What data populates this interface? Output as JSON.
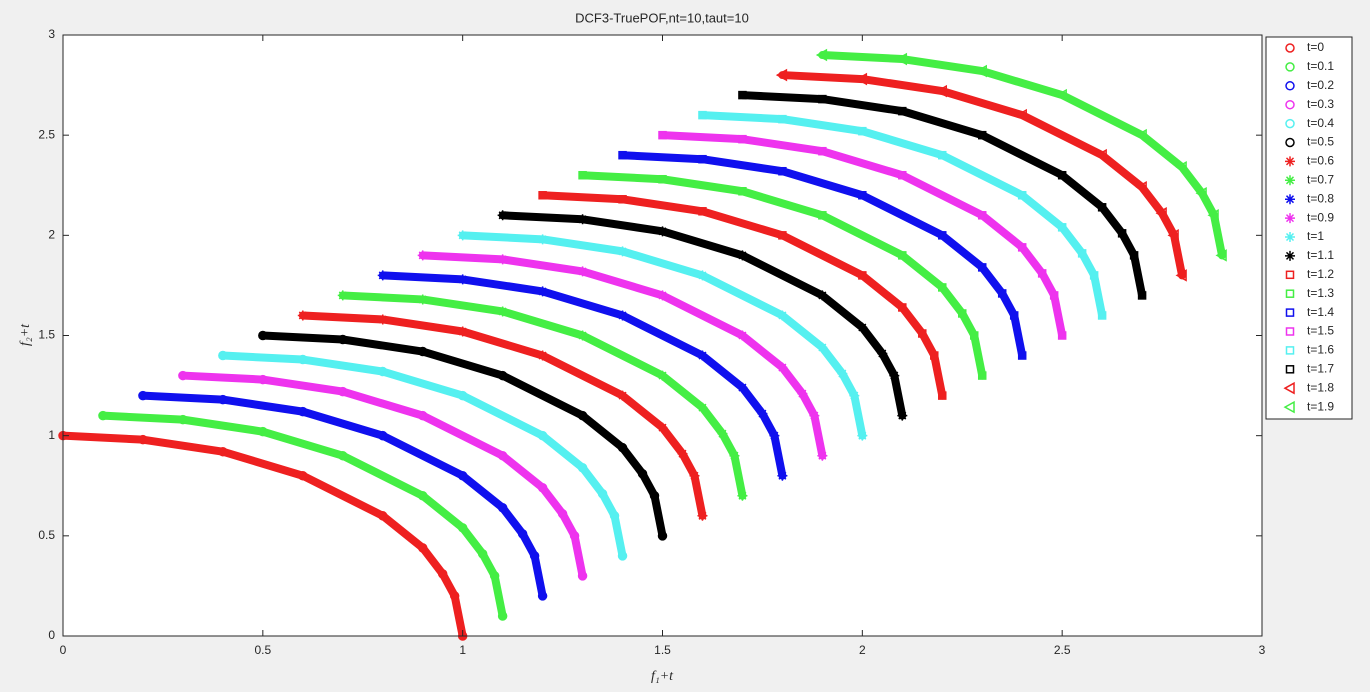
{
  "chart_data": {
    "type": "line",
    "title": "DCF3-TruePOF,nt=10,taut=10",
    "xlabel": "f₁+t",
    "ylabel": "f₂+t",
    "xlim": [
      0,
      3
    ],
    "ylim": [
      0,
      3
    ],
    "xticks": [
      0,
      0.5,
      1,
      1.5,
      2,
      2.5,
      3
    ],
    "yticks": [
      0,
      0.5,
      1,
      1.5,
      2,
      2.5,
      3
    ],
    "grid": false,
    "legend": "right",
    "series": [
      {
        "name": "t=0",
        "color": "#ee2020",
        "marker": "circle",
        "x": [
          0,
          0.2,
          0.4,
          0.6,
          0.8,
          0.9,
          0.95,
          0.98,
          1
        ],
        "values": [
          1,
          0.98,
          0.92,
          0.8,
          0.6,
          0.44,
          0.31,
          0.2,
          0
        ]
      },
      {
        "name": "t=0.1",
        "color": "#44ee44",
        "marker": "circle",
        "x": [
          0.1,
          0.3,
          0.5,
          0.7,
          0.9,
          1,
          1.05,
          1.08,
          1.1
        ],
        "values": [
          1.1,
          1.08,
          1.02,
          0.9,
          0.7,
          0.54,
          0.41,
          0.3,
          0.1
        ]
      },
      {
        "name": "t=0.2",
        "color": "#1010ee",
        "marker": "circle",
        "x": [
          0.2,
          0.4,
          0.6,
          0.8,
          1,
          1.1,
          1.15,
          1.18,
          1.2
        ],
        "values": [
          1.2,
          1.18,
          1.12,
          1,
          0.8,
          0.64,
          0.51,
          0.4,
          0.2
        ]
      },
      {
        "name": "t=0.3",
        "color": "#ee33ee",
        "marker": "circle",
        "x": [
          0.3,
          0.5,
          0.7,
          0.9,
          1.1,
          1.2,
          1.25,
          1.28,
          1.3
        ],
        "values": [
          1.3,
          1.28,
          1.22,
          1.1,
          0.9,
          0.74,
          0.61,
          0.5,
          0.3
        ]
      },
      {
        "name": "t=0.4",
        "color": "#55f0f0",
        "marker": "circle",
        "x": [
          0.4,
          0.6,
          0.8,
          1,
          1.2,
          1.3,
          1.35,
          1.38,
          1.4
        ],
        "values": [
          1.4,
          1.38,
          1.32,
          1.2,
          1,
          0.84,
          0.71,
          0.6,
          0.4
        ]
      },
      {
        "name": "t=0.5",
        "color": "#000000",
        "marker": "circle",
        "x": [
          0.5,
          0.7,
          0.9,
          1.1,
          1.3,
          1.4,
          1.45,
          1.48,
          1.5
        ],
        "values": [
          1.5,
          1.48,
          1.42,
          1.3,
          1.1,
          0.94,
          0.81,
          0.7,
          0.5
        ]
      },
      {
        "name": "t=0.6",
        "color": "#ee2020",
        "marker": "star",
        "x": [
          0.6,
          0.8,
          1,
          1.2,
          1.4,
          1.5,
          1.55,
          1.58,
          1.6
        ],
        "values": [
          1.6,
          1.58,
          1.52,
          1.4,
          1.2,
          1.04,
          0.91,
          0.8,
          0.6
        ]
      },
      {
        "name": "t=0.7",
        "color": "#44ee44",
        "marker": "star",
        "x": [
          0.7,
          0.9,
          1.1,
          1.3,
          1.5,
          1.6,
          1.65,
          1.68,
          1.7
        ],
        "values": [
          1.7,
          1.68,
          1.62,
          1.5,
          1.3,
          1.14,
          1.01,
          0.9,
          0.7
        ]
      },
      {
        "name": "t=0.8",
        "color": "#1010ee",
        "marker": "star",
        "x": [
          0.8,
          1,
          1.2,
          1.4,
          1.6,
          1.7,
          1.75,
          1.78,
          1.8
        ],
        "values": [
          1.8,
          1.78,
          1.72,
          1.6,
          1.4,
          1.24,
          1.11,
          1,
          0.8
        ]
      },
      {
        "name": "t=0.9",
        "color": "#ee33ee",
        "marker": "star",
        "x": [
          0.9,
          1.1,
          1.3,
          1.5,
          1.7,
          1.8,
          1.85,
          1.88,
          1.9
        ],
        "values": [
          1.9,
          1.88,
          1.82,
          1.7,
          1.5,
          1.34,
          1.21,
          1.1,
          0.9
        ]
      },
      {
        "name": "t=1",
        "color": "#55f0f0",
        "marker": "star",
        "x": [
          1,
          1.2,
          1.4,
          1.6,
          1.8,
          1.9,
          1.95,
          1.98,
          2
        ],
        "values": [
          2,
          1.98,
          1.92,
          1.8,
          1.6,
          1.44,
          1.31,
          1.2,
          1
        ]
      },
      {
        "name": "t=1.1",
        "color": "#000000",
        "marker": "star",
        "x": [
          1.1,
          1.3,
          1.5,
          1.7,
          1.9,
          2,
          2.05,
          2.08,
          2.1
        ],
        "values": [
          2.1,
          2.08,
          2.02,
          1.9,
          1.7,
          1.54,
          1.41,
          1.3,
          1.1
        ]
      },
      {
        "name": "t=1.2",
        "color": "#ee2020",
        "marker": "square",
        "x": [
          1.2,
          1.4,
          1.6,
          1.8,
          2,
          2.1,
          2.15,
          2.18,
          2.2
        ],
        "values": [
          2.2,
          2.18,
          2.12,
          2,
          1.8,
          1.64,
          1.51,
          1.4,
          1.2
        ]
      },
      {
        "name": "t=1.3",
        "color": "#44ee44",
        "marker": "square",
        "x": [
          1.3,
          1.5,
          1.7,
          1.9,
          2.1,
          2.2,
          2.25,
          2.28,
          2.3
        ],
        "values": [
          2.3,
          2.28,
          2.22,
          2.1,
          1.9,
          1.74,
          1.61,
          1.5,
          1.3
        ]
      },
      {
        "name": "t=1.4",
        "color": "#1010ee",
        "marker": "square",
        "x": [
          1.4,
          1.6,
          1.8,
          2,
          2.2,
          2.3,
          2.35,
          2.38,
          2.4
        ],
        "values": [
          2.4,
          2.38,
          2.32,
          2.2,
          2,
          1.84,
          1.71,
          1.6,
          1.4
        ]
      },
      {
        "name": "t=1.5",
        "color": "#ee33ee",
        "marker": "square",
        "x": [
          1.5,
          1.7,
          1.9,
          2.1,
          2.3,
          2.4,
          2.45,
          2.48,
          2.5
        ],
        "values": [
          2.5,
          2.48,
          2.42,
          2.3,
          2.1,
          1.94,
          1.81,
          1.7,
          1.5
        ]
      },
      {
        "name": "t=1.6",
        "color": "#55f0f0",
        "marker": "square",
        "x": [
          1.6,
          1.8,
          2,
          2.2,
          2.4,
          2.5,
          2.55,
          2.58,
          2.6
        ],
        "values": [
          2.6,
          2.58,
          2.52,
          2.4,
          2.2,
          2.04,
          1.91,
          1.8,
          1.6
        ]
      },
      {
        "name": "t=1.7",
        "color": "#000000",
        "marker": "square",
        "x": [
          1.7,
          1.9,
          2.1,
          2.3,
          2.5,
          2.6,
          2.65,
          2.68,
          2.7
        ],
        "values": [
          2.7,
          2.68,
          2.62,
          2.5,
          2.3,
          2.14,
          2.01,
          1.9,
          1.7
        ]
      },
      {
        "name": "t=1.8",
        "color": "#ee2020",
        "marker": "triangle-left",
        "x": [
          1.8,
          2,
          2.2,
          2.4,
          2.6,
          2.7,
          2.75,
          2.78,
          2.8
        ],
        "values": [
          2.8,
          2.78,
          2.72,
          2.6,
          2.4,
          2.24,
          2.11,
          2,
          1.8
        ]
      },
      {
        "name": "t=1.9",
        "color": "#44ee44",
        "marker": "triangle-left",
        "x": [
          1.9,
          2.1,
          2.3,
          2.5,
          2.7,
          2.8,
          2.85,
          2.88,
          2.9
        ],
        "values": [
          2.9,
          2.88,
          2.82,
          2.7,
          2.5,
          2.34,
          2.21,
          2.1,
          1.9
        ]
      }
    ]
  }
}
